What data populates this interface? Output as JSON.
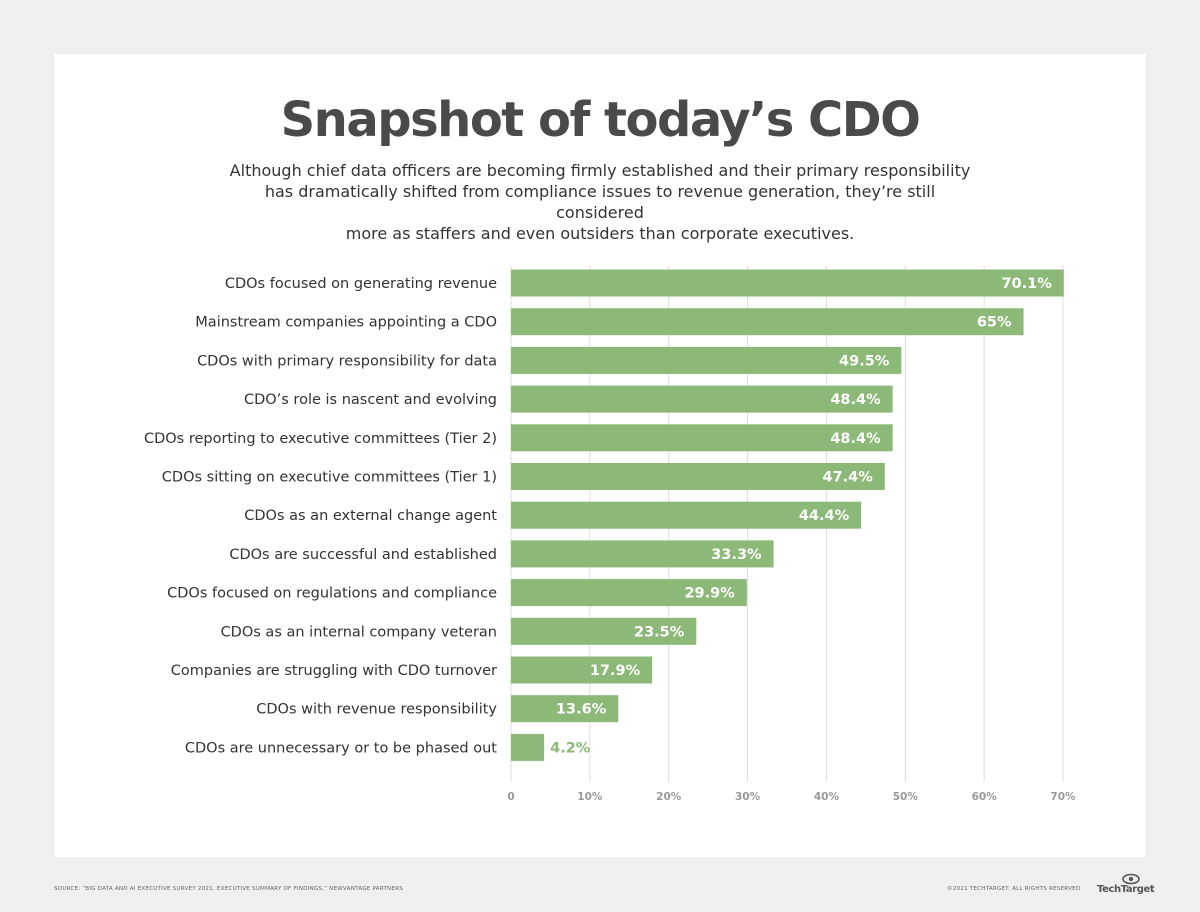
{
  "header": {
    "title": "Snapshot of today’s CDO",
    "subtitle_lines": [
      "Although chief data officers are becoming firmly established and their primary responsibility",
      "has dramatically shifted from compliance issues to revenue generation, they’re still considered",
      "more as staffers and even outsiders than corporate executives."
    ]
  },
  "chart_data": {
    "type": "bar",
    "orientation": "horizontal",
    "categories": [
      "CDOs focused on generating revenue",
      "Mainstream companies appointing a CDO",
      "CDOs with primary responsibility for data",
      "CDO’s role is nascent and evolving",
      "CDOs reporting to executive committees (Tier 2)",
      "CDOs sitting on executive committees (Tier 1)",
      "CDOs as an external change agent",
      "CDOs are successful and established",
      "CDOs focused on regulations and compliance",
      "CDOs as an internal company veteran",
      "Companies are struggling with CDO turnover",
      "CDOs with revenue responsibility",
      "CDOs are unnecessary or to be phased out"
    ],
    "values": [
      70.1,
      65,
      49.5,
      48.4,
      48.4,
      47.4,
      44.4,
      33.3,
      29.9,
      23.5,
      17.9,
      13.6,
      4.2
    ],
    "value_labels": [
      "70.1%",
      "65%",
      "49.5%",
      "48.4%",
      "48.4%",
      "47.4%",
      "44.4%",
      "33.3%",
      "29.9%",
      "23.5%",
      "17.9%",
      "13.6%",
      "4.2%"
    ],
    "xlim": [
      0,
      70
    ],
    "xticks": [
      0,
      10,
      20,
      30,
      40,
      50,
      60,
      70
    ],
    "xtick_labels": [
      "0",
      "10%",
      "20%",
      "30%",
      "40%",
      "50%",
      "60%",
      "70%"
    ],
    "grid": true,
    "bar_color": "#8cb978",
    "label_inside_color": "#ffffff",
    "label_outside_color": "#8cb978",
    "category_label_color": "#333333",
    "tick_label_color": "#999999",
    "grid_color": "#dddddd"
  },
  "footer": {
    "source": "SOURCE: “BIG DATA AND AI EXECUTIVE SURVEY 2021, EXECUTIVE SUMMARY OF FINDINGS,” NEWVANTAGE PARTNERS",
    "copyright": "©2021 TECHTARGET. ALL RIGHTS RESERVED",
    "brand": "TechTarget"
  },
  "colors": {
    "background": "#efefef",
    "card": "#ffffff",
    "title": "#4a4a4a"
  }
}
